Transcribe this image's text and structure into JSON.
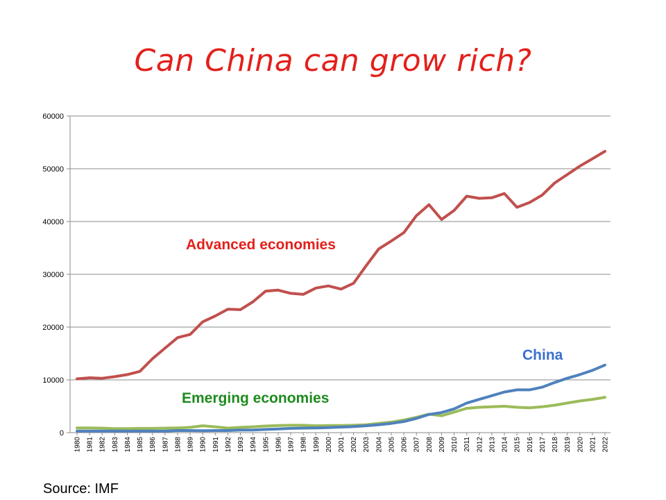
{
  "title": "Can China can grow rich?",
  "source": "Source: IMF",
  "chart_data": {
    "type": "line",
    "title": "Can China can grow rich?",
    "xlabel": "",
    "ylabel": "",
    "ylim": [
      0,
      60000
    ],
    "yticks": [
      0,
      10000,
      20000,
      30000,
      40000,
      50000,
      60000
    ],
    "grid": true,
    "legend": "none",
    "x": [
      "1980",
      "1981",
      "1982",
      "1983",
      "1984",
      "1985",
      "1986",
      "1987",
      "1988",
      "1989",
      "1990",
      "1991",
      "1992",
      "1993",
      "1994",
      "1995",
      "1996",
      "1997",
      "1998",
      "1999",
      "2000",
      "2001",
      "2002",
      "2003",
      "2004",
      "2005",
      "2006",
      "2007",
      "2008",
      "2009",
      "2010",
      "2011",
      "2012",
      "2013",
      "2014",
      "2015",
      "2016",
      "2017",
      "2018",
      "2019",
      "2020",
      "2021",
      "2022"
    ],
    "series": [
      {
        "name": "Advanced economies",
        "color": "#c0504d",
        "label_color": "#e3201b",
        "values": [
          10200,
          10400,
          10300,
          10600,
          11000,
          11600,
          14000,
          16000,
          18000,
          18600,
          21000,
          22100,
          23400,
          23300,
          24800,
          26800,
          27000,
          26400,
          26200,
          27400,
          27800,
          27200,
          28300,
          31600,
          34800,
          36300,
          37900,
          41100,
          43200,
          40400,
          42100,
          44800,
          44400,
          44500,
          45300,
          42700,
          43600,
          45000,
          47300,
          48900,
          50500,
          51900,
          53300
        ]
      },
      {
        "name": "China",
        "color": "#4f81bd",
        "label_color": "#3b6fd0",
        "values": [
          300,
          300,
          300,
          300,
          300,
          300,
          300,
          300,
          400,
          400,
          350,
          400,
          400,
          500,
          500,
          600,
          700,
          800,
          850,
          900,
          950,
          1050,
          1150,
          1300,
          1500,
          1750,
          2100,
          2700,
          3450,
          3800,
          4500,
          5600,
          6300,
          7000,
          7700,
          8100,
          8100,
          8600,
          9500,
          10300,
          11000,
          11800,
          12800
        ]
      },
      {
        "name": "Emerging economies",
        "color": "#9bbb59",
        "label_color": "#1e8a1e",
        "values": [
          900,
          900,
          850,
          750,
          750,
          800,
          800,
          850,
          900,
          1000,
          1300,
          1100,
          850,
          1000,
          1100,
          1250,
          1350,
          1400,
          1400,
          1300,
          1350,
          1350,
          1400,
          1500,
          1750,
          2000,
          2400,
          2900,
          3500,
          3200,
          3900,
          4600,
          4800,
          4900,
          5000,
          4800,
          4700,
          4900,
          5200,
          5600,
          6000,
          6300,
          6700
        ]
      }
    ]
  }
}
